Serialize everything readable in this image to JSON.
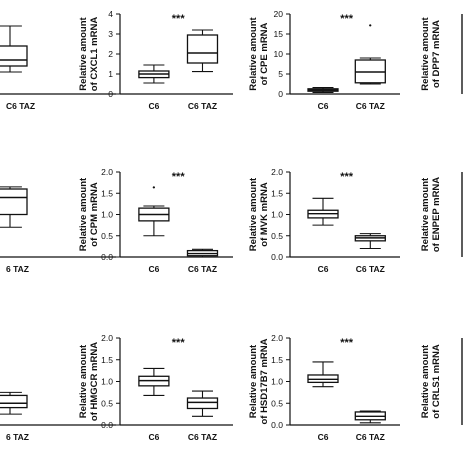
{
  "chart_data": [
    {
      "type": "box",
      "ylabel": "",
      "yticks": [],
      "ylim": [
        0,
        4
      ],
      "categories": [
        "",
        "C6 TAZ"
      ],
      "series": [
        {
          "values": [
            [
              0,
              0,
              0,
              0,
              0
            ],
            [
              1.1,
              1.4,
              1.7,
              2.4,
              3.4
            ]
          ]
        }
      ],
      "significance": ""
    },
    {
      "type": "box",
      "ylabel": "Relative amount of CXCL1 mRNA",
      "yticks": [
        "0",
        "1",
        "2",
        "3",
        "4"
      ],
      "ylim": [
        0,
        4
      ],
      "categories": [
        "C6",
        "C6 TAZ"
      ],
      "series": [
        {
          "values": [
            [
              0.55,
              0.82,
              1.0,
              1.15,
              1.45
            ],
            [
              1.12,
              1.55,
              2.05,
              2.95,
              3.2
            ]
          ]
        }
      ],
      "significance": "***"
    },
    {
      "type": "box",
      "ylabel": "Relative amount of CPE mRNA",
      "yticks": [
        "0",
        "5",
        "10",
        "15",
        "20"
      ],
      "ylim": [
        0,
        20
      ],
      "categories": [
        "C6",
        "C6 TAZ"
      ],
      "series": [
        {
          "values": [
            [
              0.4,
              0.7,
              1.0,
              1.3,
              1.6
            ],
            [
              2.5,
              2.8,
              5.5,
              8.5,
              9.0
            ]
          ]
        }
      ],
      "outliers": [
        {
          "group": 1,
          "value": 17.3
        }
      ],
      "significance": "***"
    },
    {
      "type": "box",
      "ylabel": "Relative amount of DPP7 mRNA",
      "yticks": [],
      "ylim": [
        0,
        2
      ],
      "categories": [
        "",
        ""
      ],
      "series": [],
      "significance": ""
    },
    {
      "type": "box",
      "ylabel": "",
      "yticks": [],
      "ylim": [
        0,
        2
      ],
      "categories": [
        "",
        "6 TAZ"
      ],
      "series": [
        {
          "values": [
            [
              0,
              0,
              0,
              0,
              0
            ],
            [
              0.7,
              1.0,
              1.4,
              1.6,
              1.65
            ]
          ]
        }
      ],
      "significance": ""
    },
    {
      "type": "box",
      "ylabel": "Relative amount of CPM mRNA",
      "yticks": [
        "0.0",
        "0.5",
        "1.0",
        "1.5",
        "2.0"
      ],
      "ylim": [
        0,
        2
      ],
      "categories": [
        "C6",
        "C6 TAZ"
      ],
      "series": [
        {
          "values": [
            [
              0.5,
              0.85,
              1.0,
              1.15,
              1.2
            ],
            [
              0.0,
              0.03,
              0.08,
              0.15,
              0.18
            ]
          ]
        }
      ],
      "outliers": [
        {
          "group": 0,
          "value": 1.65
        }
      ],
      "significance": "***"
    },
    {
      "type": "box",
      "ylabel": "Relative amount of MVK mRNA",
      "yticks": [
        "0.0",
        "0.5",
        "1.0",
        "1.5",
        "2.0"
      ],
      "ylim": [
        0,
        2
      ],
      "categories": [
        "C6",
        "C6 TAZ"
      ],
      "series": [
        {
          "values": [
            [
              0.75,
              0.92,
              1.02,
              1.1,
              1.38
            ],
            [
              0.2,
              0.38,
              0.45,
              0.5,
              0.55
            ]
          ]
        }
      ],
      "significance": "***"
    },
    {
      "type": "box",
      "ylabel": "Relative amount of ENPEP mRNA",
      "yticks": [],
      "ylim": [
        0,
        2
      ],
      "categories": [
        "",
        ""
      ],
      "series": [],
      "significance": ""
    },
    {
      "type": "box",
      "ylabel": "",
      "yticks": [],
      "ylim": [
        0,
        2
      ],
      "categories": [
        "",
        "6 TAZ"
      ],
      "series": [
        {
          "values": [
            [
              0,
              0,
              0,
              0,
              0
            ],
            [
              0.25,
              0.4,
              0.5,
              0.68,
              0.75
            ]
          ]
        }
      ],
      "significance": ""
    },
    {
      "type": "box",
      "ylabel": "Relative amount of HMGCR mRNA",
      "yticks": [
        "0.0",
        "0.5",
        "1.0",
        "1.5",
        "2.0"
      ],
      "ylim": [
        0,
        2
      ],
      "categories": [
        "C6",
        "C6 TAZ"
      ],
      "series": [
        {
          "values": [
            [
              0.68,
              0.9,
              1.02,
              1.12,
              1.3
            ],
            [
              0.2,
              0.38,
              0.52,
              0.62,
              0.78
            ]
          ]
        }
      ],
      "significance": "***"
    },
    {
      "type": "box",
      "ylabel": "Relative amount of HSD17B7 mRNA",
      "yticks": [
        "0.0",
        "0.5",
        "1.0",
        "1.5",
        "2.0"
      ],
      "ylim": [
        0,
        2
      ],
      "categories": [
        "C6",
        "C6 TAZ"
      ],
      "series": [
        {
          "values": [
            [
              0.88,
              0.98,
              1.05,
              1.15,
              1.45
            ],
            [
              0.05,
              0.12,
              0.2,
              0.3,
              0.32
            ]
          ]
        }
      ],
      "significance": "***"
    },
    {
      "type": "box",
      "ylabel": "Relative amount of CRLS1 mRNA",
      "yticks": [],
      "ylim": [
        0,
        2
      ],
      "categories": [
        "",
        ""
      ],
      "series": [],
      "significance": ""
    }
  ]
}
